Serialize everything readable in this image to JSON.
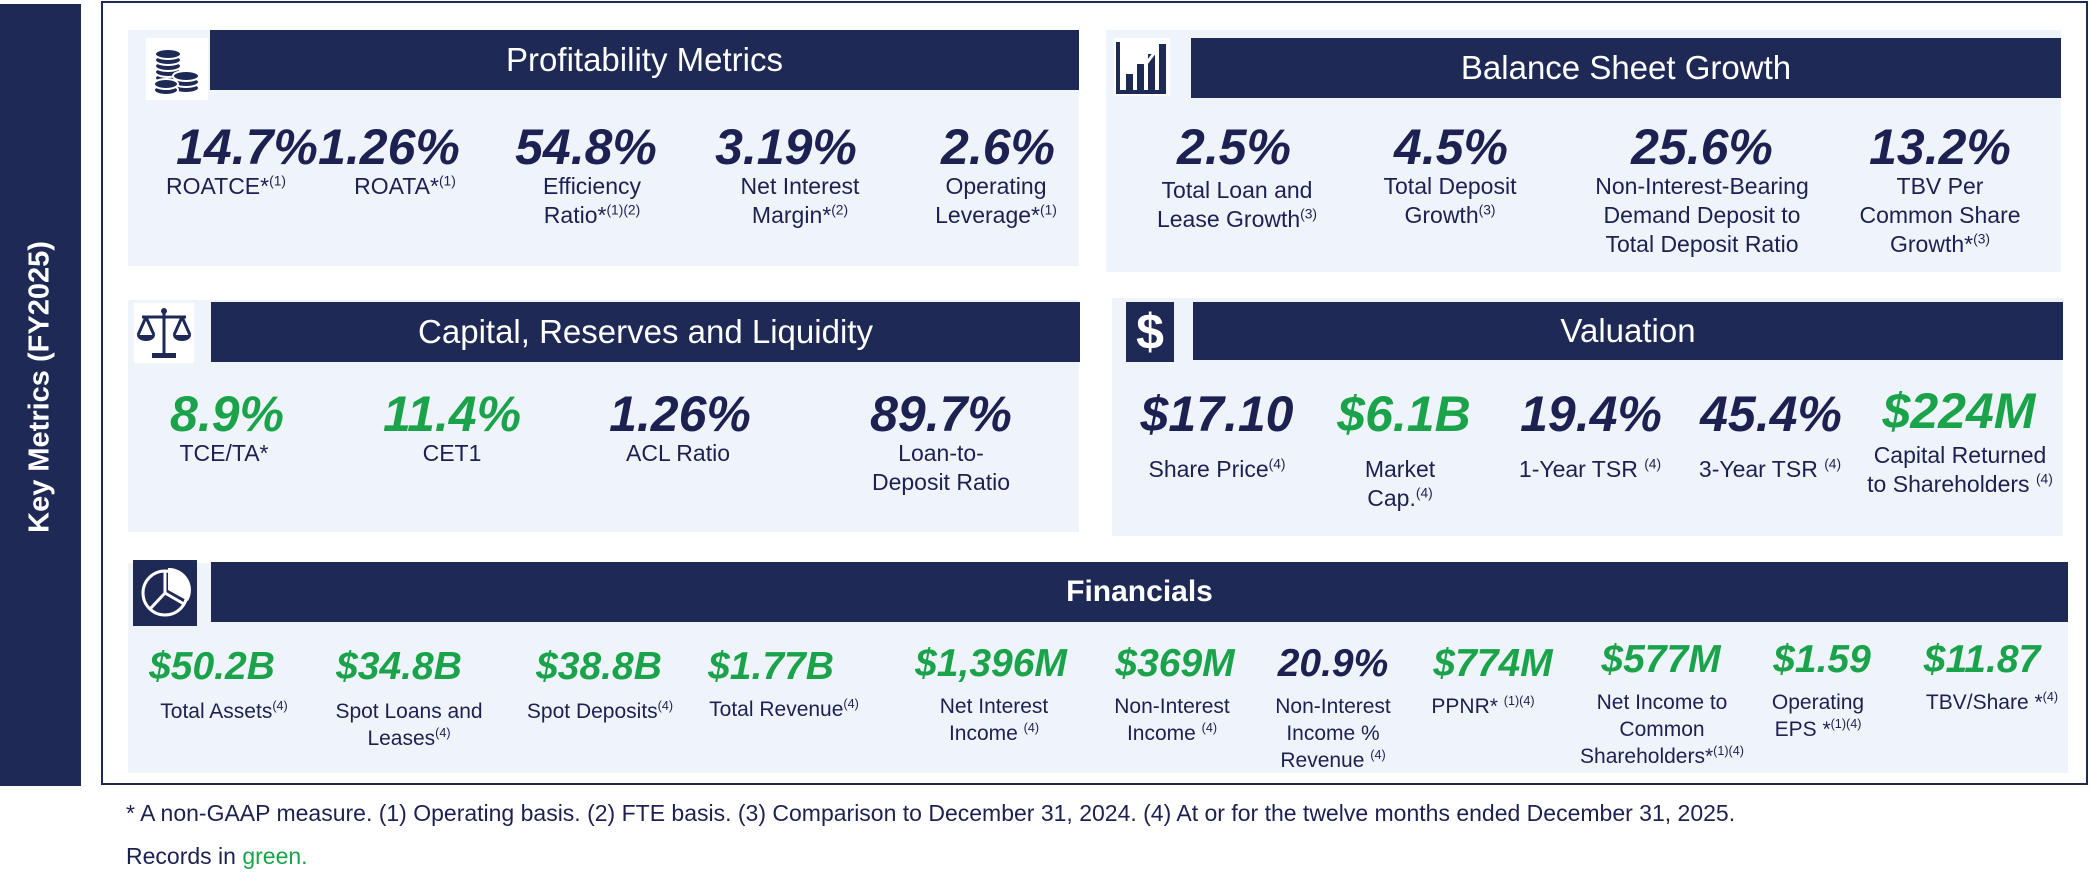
{
  "sidebar": {
    "title": "Key Metrics (FY2025)"
  },
  "colors": {
    "navy": "#1e2a55",
    "panel": "#eff3fa",
    "green": "#1aa34a"
  },
  "profitability": {
    "title": "Profitability Metrics",
    "icon": "coins-icon",
    "metrics": [
      {
        "value": "14.7%",
        "label": "ROATCE*",
        "sup": "(1)"
      },
      {
        "value": "1.26%",
        "label": "ROATA*",
        "sup": "(1)"
      },
      {
        "value": "54.8%",
        "label": "Efficiency\nRatio*",
        "sup": "(1)(2)"
      },
      {
        "value": "3.19%",
        "label": "Net Interest\nMargin*",
        "sup": "(2)"
      },
      {
        "value": "2.6%",
        "label": "Operating\nLeverage*",
        "sup": "(1)"
      }
    ]
  },
  "balance": {
    "title": "Balance Sheet Growth",
    "icon": "bar-chart-icon",
    "metrics": [
      {
        "value": "2.5%",
        "label": "Total Loan and\nLease Growth",
        "sup": "(3)"
      },
      {
        "value": "4.5%",
        "label": "Total Deposit\nGrowth",
        "sup": "(3)"
      },
      {
        "value": "25.6%",
        "label": "Non-Interest-Bearing\nDemand Deposit to\nTotal Deposit Ratio",
        "sup": ""
      },
      {
        "value": "13.2%",
        "label": "TBV Per\nCommon Share\nGrowth*",
        "sup": "(3)"
      }
    ]
  },
  "capital": {
    "title": "Capital, Reserves and Liquidity",
    "icon": "scales-icon",
    "metrics": [
      {
        "value": "8.9%",
        "label": "TCE/TA*",
        "sup": ""
      },
      {
        "value": "11.4%",
        "label": "CET1",
        "sup": ""
      },
      {
        "value": "1.26%",
        "label": "ACL Ratio",
        "sup": ""
      },
      {
        "value": "89.7%",
        "label": "Loan-to-\nDeposit Ratio",
        "sup": ""
      }
    ]
  },
  "valuation": {
    "title": "Valuation",
    "icon": "dollar-icon",
    "metrics": [
      {
        "value": "$17.10",
        "label": "Share Price",
        "sup": "(4)"
      },
      {
        "value": "$6.1B",
        "label": "Market\nCap.",
        "sup": "(4)"
      },
      {
        "value": "19.4%",
        "label": "1-Year TSR ",
        "sup": "(4)"
      },
      {
        "value": "45.4%",
        "label": "3-Year TSR ",
        "sup": "(4)"
      },
      {
        "value": "$224M",
        "label": "Capital Returned\nto Shareholders ",
        "sup": "(4)"
      }
    ]
  },
  "financials": {
    "title": "Financials",
    "icon": "pie-chart-icon",
    "metrics": [
      {
        "value": "$50.2B",
        "label": "Total Assets",
        "sup": "(4)"
      },
      {
        "value": "$34.8B",
        "label": "Spot Loans and\nLeases",
        "sup": "(4)"
      },
      {
        "value": "$38.8B",
        "label": "Spot Deposits",
        "sup": "(4)"
      },
      {
        "value": "$1.77B",
        "label": "Total Revenue",
        "sup": "(4)"
      },
      {
        "value": "$1,396M",
        "label": "Net Interest\nIncome ",
        "sup": "(4)"
      },
      {
        "value": "$369M",
        "label": "Non-Interest\nIncome ",
        "sup": "(4)"
      },
      {
        "value": "20.9%",
        "label": "Non-Interest\nIncome %\nRevenue ",
        "sup": "(4)"
      },
      {
        "value": "$774M",
        "label": "PPNR* ",
        "sup": "(1)(4)"
      },
      {
        "value": "$577M",
        "label": "Net Income to\nCommon\nShareholders*",
        "sup": "(1)(4)"
      },
      {
        "value": "$1.59",
        "label": "Operating\nEPS *",
        "sup": "(1)(4)"
      },
      {
        "value": "$11.87",
        "label": "TBV/Share *",
        "sup": "(4)"
      }
    ]
  },
  "footnote": {
    "line1": "* A non-GAAP measure. (1) Operating basis. (2) FTE basis. (3) Comparison to December 31, 2024. (4) At or for the twelve months ended December 31, 2025.",
    "records_prefix": "Records in ",
    "records_green": "green."
  }
}
